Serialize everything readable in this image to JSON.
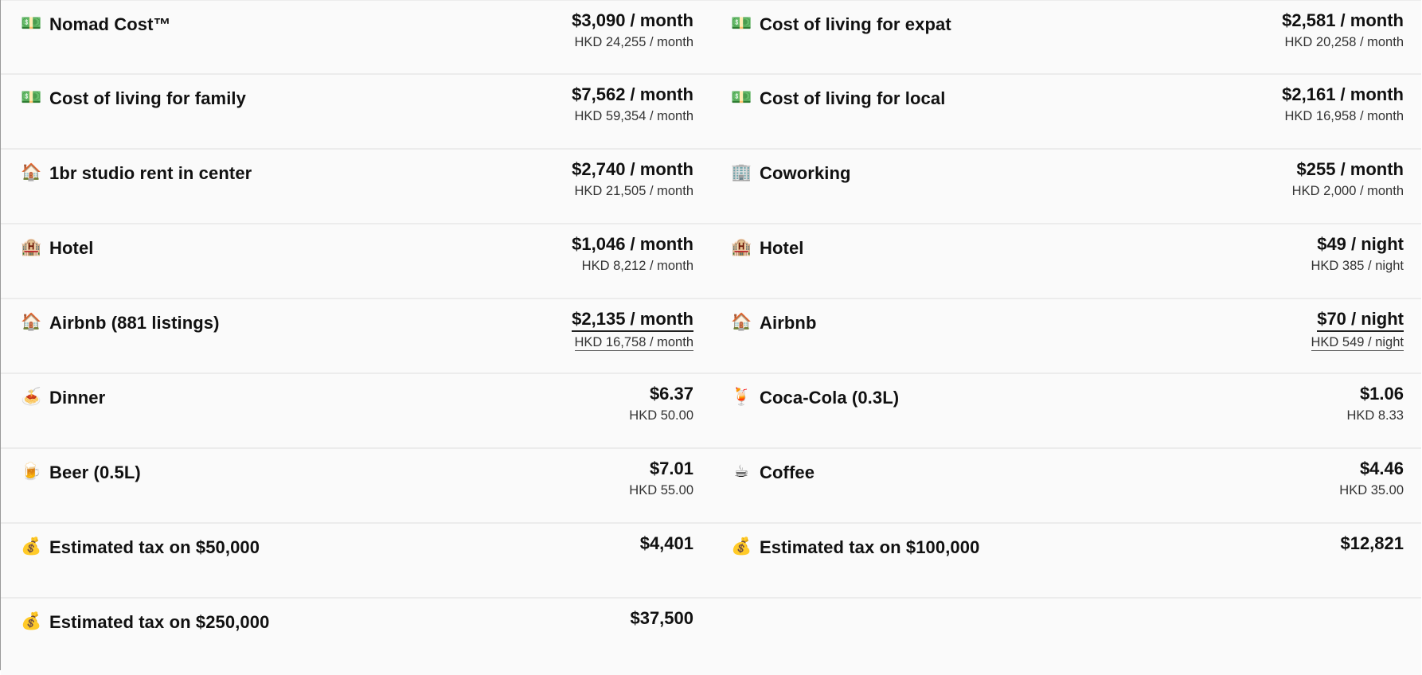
{
  "rows": [
    {
      "left": {
        "icon": "💵",
        "label": "Nomad Cost™",
        "usd": "$3,090 / month",
        "local": "HKD 24,255 / month"
      },
      "right": {
        "icon": "💵",
        "label": "Cost of living for expat",
        "usd": "$2,581 / month",
        "local": "HKD 20,258 / month"
      }
    },
    {
      "left": {
        "icon": "💵",
        "label": "Cost of living for family",
        "usd": "$7,562 / month",
        "local": "HKD 59,354 / month"
      },
      "right": {
        "icon": "💵",
        "label": "Cost of living for local",
        "usd": "$2,161 / month",
        "local": "HKD 16,958 / month"
      }
    },
    {
      "left": {
        "icon": "🏠",
        "label": "1br studio rent in center",
        "usd": "$2,740 / month",
        "local": "HKD 21,505 / month"
      },
      "right": {
        "icon": "🏢",
        "label": "Coworking",
        "usd": "$255 / month",
        "local": "HKD 2,000 / month"
      }
    },
    {
      "left": {
        "icon": "🏨",
        "label": "Hotel",
        "usd": "$1,046 / month",
        "local": "HKD 8,212 / month"
      },
      "right": {
        "icon": "🏨",
        "label": "Hotel",
        "usd": "$49 / night",
        "local": "HKD 385 / night"
      }
    },
    {
      "left": {
        "icon": "🏠",
        "label": "Airbnb (881 listings)",
        "usd": "$2,135 / month",
        "local": "HKD 16,758 / month"
      },
      "right": {
        "icon": "🏠",
        "label": "Airbnb",
        "usd": "$70 / night",
        "local": "HKD 549 / night"
      }
    },
    {
      "left": {
        "icon": "🍝",
        "label": "Dinner",
        "usd": "$6.37",
        "local": "HKD 50.00"
      },
      "right": {
        "icon": "🍹",
        "label": "Coca-Cola (0.3L)",
        "usd": "$1.06",
        "local": "HKD 8.33"
      }
    },
    {
      "left": {
        "icon": "🍺",
        "label": "Beer (0.5L)",
        "usd": "$7.01",
        "local": "HKD 55.00"
      },
      "right": {
        "icon": "☕",
        "label": "Coffee",
        "usd": "$4.46",
        "local": "HKD 35.00"
      }
    },
    {
      "left": {
        "icon": "💰",
        "label": "Estimated tax on $50,000",
        "usd": "$4,401"
      },
      "right": {
        "icon": "💰",
        "label": "Estimated tax on $100,000",
        "usd": "$12,821"
      }
    },
    {
      "left": {
        "icon": "💰",
        "label": "Estimated tax on $250,000",
        "usd": "$37,500"
      }
    }
  ]
}
